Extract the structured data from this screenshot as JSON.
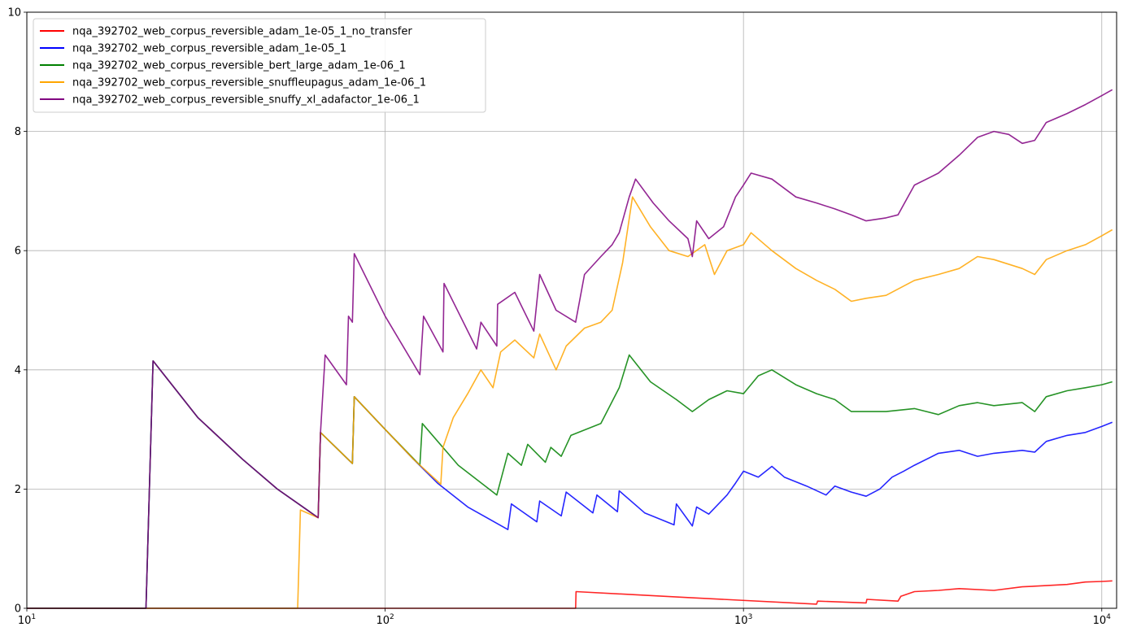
{
  "chart_data": {
    "type": "line",
    "title": "",
    "xlabel": "",
    "ylabel": "",
    "xscale": "log",
    "xlim": [
      10,
      11000
    ],
    "ylim": [
      0,
      10
    ],
    "grid": true,
    "legend_position": "top-left",
    "x_ticks": [
      {
        "value": 10,
        "base": "10",
        "exp": "1"
      },
      {
        "value": 100,
        "base": "10",
        "exp": "2"
      },
      {
        "value": 1000,
        "base": "10",
        "exp": "3"
      },
      {
        "value": 10000,
        "base": "10",
        "exp": "4"
      }
    ],
    "y_ticks": [
      0,
      2,
      4,
      6,
      8,
      10
    ],
    "series": [
      {
        "name": "nqa_392702_web_corpus_reversible_adam_1e-05_1_no_transfer",
        "color": "#ff0000",
        "points": [
          [
            10,
            0
          ],
          [
            340,
            0
          ],
          [
            341,
            0.28
          ],
          [
            700,
            0.18
          ],
          [
            1600,
            0.07
          ],
          [
            1610,
            0.12
          ],
          [
            2200,
            0.09
          ],
          [
            2210,
            0.15
          ],
          [
            2700,
            0.12
          ],
          [
            2750,
            0.2
          ],
          [
            3000,
            0.28
          ],
          [
            3500,
            0.3
          ],
          [
            4000,
            0.33
          ],
          [
            5000,
            0.3
          ],
          [
            6000,
            0.36
          ],
          [
            7000,
            0.38
          ],
          [
            8000,
            0.4
          ],
          [
            9000,
            0.44
          ],
          [
            10000,
            0.45
          ],
          [
            10700,
            0.46
          ]
        ]
      },
      {
        "name": "nqa_392702_web_corpus_reversible_adam_1e-05_1",
        "color": "#0000ff",
        "points": [
          [
            10,
            0
          ],
          [
            21.5,
            0
          ],
          [
            22.5,
            4.15
          ],
          [
            30,
            3.2
          ],
          [
            40,
            2.5
          ],
          [
            50,
            2.0
          ],
          [
            65,
            1.52
          ],
          [
            66,
            2.95
          ],
          [
            81,
            2.43
          ],
          [
            82,
            3.55
          ],
          [
            100,
            3.0
          ],
          [
            120,
            2.5
          ],
          [
            140,
            2.1
          ],
          [
            170,
            1.7
          ],
          [
            220,
            1.32
          ],
          [
            225,
            1.75
          ],
          [
            265,
            1.45
          ],
          [
            270,
            1.8
          ],
          [
            310,
            1.55
          ],
          [
            320,
            1.95
          ],
          [
            380,
            1.6
          ],
          [
            390,
            1.9
          ],
          [
            445,
            1.62
          ],
          [
            450,
            1.97
          ],
          [
            530,
            1.6
          ],
          [
            640,
            1.4
          ],
          [
            650,
            1.75
          ],
          [
            720,
            1.38
          ],
          [
            740,
            1.7
          ],
          [
            800,
            1.58
          ],
          [
            900,
            1.9
          ],
          [
            950,
            2.1
          ],
          [
            1000,
            2.3
          ],
          [
            1100,
            2.2
          ],
          [
            1200,
            2.38
          ],
          [
            1300,
            2.2
          ],
          [
            1500,
            2.05
          ],
          [
            1700,
            1.9
          ],
          [
            1800,
            2.05
          ],
          [
            2000,
            1.95
          ],
          [
            2200,
            1.88
          ],
          [
            2400,
            2.0
          ],
          [
            2600,
            2.2
          ],
          [
            2800,
            2.3
          ],
          [
            3000,
            2.4
          ],
          [
            3500,
            2.6
          ],
          [
            4000,
            2.65
          ],
          [
            4500,
            2.55
          ],
          [
            5000,
            2.6
          ],
          [
            6000,
            2.65
          ],
          [
            6500,
            2.62
          ],
          [
            7000,
            2.8
          ],
          [
            8000,
            2.9
          ],
          [
            9000,
            2.95
          ],
          [
            10000,
            3.05
          ],
          [
            10700,
            3.12
          ]
        ]
      },
      {
        "name": "nqa_392702_web_corpus_reversible_bert_large_adam_1e-06_1",
        "color": "#008000",
        "points": [
          [
            10,
            0
          ],
          [
            21.5,
            0
          ],
          [
            22.5,
            4.15
          ],
          [
            30,
            3.2
          ],
          [
            40,
            2.5
          ],
          [
            50,
            2.0
          ],
          [
            65,
            1.52
          ],
          [
            66,
            2.95
          ],
          [
            81,
            2.43
          ],
          [
            82,
            3.55
          ],
          [
            100,
            3.0
          ],
          [
            125,
            2.4
          ],
          [
            127,
            3.1
          ],
          [
            160,
            2.4
          ],
          [
            205,
            1.9
          ],
          [
            220,
            2.6
          ],
          [
            240,
            2.4
          ],
          [
            250,
            2.75
          ],
          [
            280,
            2.45
          ],
          [
            290,
            2.7
          ],
          [
            310,
            2.55
          ],
          [
            330,
            2.9
          ],
          [
            400,
            3.1
          ],
          [
            450,
            3.7
          ],
          [
            480,
            4.25
          ],
          [
            550,
            3.8
          ],
          [
            650,
            3.5
          ],
          [
            720,
            3.3
          ],
          [
            800,
            3.5
          ],
          [
            900,
            3.65
          ],
          [
            1000,
            3.6
          ],
          [
            1100,
            3.9
          ],
          [
            1200,
            4.0
          ],
          [
            1400,
            3.75
          ],
          [
            1600,
            3.6
          ],
          [
            1800,
            3.5
          ],
          [
            2000,
            3.3
          ],
          [
            2200,
            3.3
          ],
          [
            2500,
            3.3
          ],
          [
            3000,
            3.35
          ],
          [
            3500,
            3.25
          ],
          [
            4000,
            3.4
          ],
          [
            4500,
            3.45
          ],
          [
            5000,
            3.4
          ],
          [
            6000,
            3.45
          ],
          [
            6500,
            3.3
          ],
          [
            7000,
            3.55
          ],
          [
            8000,
            3.65
          ],
          [
            9000,
            3.7
          ],
          [
            10000,
            3.75
          ],
          [
            10700,
            3.8
          ]
        ]
      },
      {
        "name": "nqa_392702_web_corpus_reversible_snuffleupagus_adam_1e-06_1",
        "color": "#ffa500",
        "points": [
          [
            10,
            0
          ],
          [
            57,
            0
          ],
          [
            58,
            1.65
          ],
          [
            65,
            1.52
          ],
          [
            66,
            2.95
          ],
          [
            81,
            2.43
          ],
          [
            82,
            3.55
          ],
          [
            100,
            3.0
          ],
          [
            120,
            2.5
          ],
          [
            143,
            2.08
          ],
          [
            145,
            2.7
          ],
          [
            155,
            3.2
          ],
          [
            170,
            3.6
          ],
          [
            185,
            4.0
          ],
          [
            200,
            3.7
          ],
          [
            210,
            4.3
          ],
          [
            230,
            4.5
          ],
          [
            260,
            4.2
          ],
          [
            270,
            4.6
          ],
          [
            300,
            4.0
          ],
          [
            320,
            4.4
          ],
          [
            360,
            4.7
          ],
          [
            400,
            4.8
          ],
          [
            430,
            5.0
          ],
          [
            460,
            5.8
          ],
          [
            490,
            6.9
          ],
          [
            550,
            6.4
          ],
          [
            620,
            6.0
          ],
          [
            700,
            5.9
          ],
          [
            780,
            6.1
          ],
          [
            830,
            5.6
          ],
          [
            900,
            6.0
          ],
          [
            1000,
            6.1
          ],
          [
            1050,
            6.3
          ],
          [
            1200,
            6.0
          ],
          [
            1400,
            5.7
          ],
          [
            1600,
            5.5
          ],
          [
            1800,
            5.35
          ],
          [
            2000,
            5.15
          ],
          [
            2200,
            5.2
          ],
          [
            2500,
            5.25
          ],
          [
            3000,
            5.5
          ],
          [
            3500,
            5.6
          ],
          [
            4000,
            5.7
          ],
          [
            4500,
            5.9
          ],
          [
            5000,
            5.85
          ],
          [
            6000,
            5.7
          ],
          [
            6500,
            5.6
          ],
          [
            7000,
            5.85
          ],
          [
            8000,
            6.0
          ],
          [
            9000,
            6.1
          ],
          [
            10000,
            6.25
          ],
          [
            10700,
            6.35
          ]
        ]
      },
      {
        "name": "nqa_392702_web_corpus_reversible_snuffy_xl_adafactor_1e-06_1",
        "color": "#800080",
        "points": [
          [
            10,
            0
          ],
          [
            21.5,
            0
          ],
          [
            22.5,
            4.15
          ],
          [
            30,
            3.2
          ],
          [
            40,
            2.5
          ],
          [
            50,
            2.0
          ],
          [
            65,
            1.52
          ],
          [
            66,
            2.95
          ],
          [
            68,
            4.25
          ],
          [
            78,
            3.75
          ],
          [
            79,
            4.9
          ],
          [
            81,
            4.8
          ],
          [
            82,
            5.95
          ],
          [
            100,
            4.9
          ],
          [
            120,
            4.1
          ],
          [
            125,
            3.92
          ],
          [
            128,
            4.9
          ],
          [
            145,
            4.3
          ],
          [
            146,
            5.45
          ],
          [
            180,
            4.35
          ],
          [
            185,
            4.8
          ],
          [
            205,
            4.4
          ],
          [
            206,
            5.1
          ],
          [
            230,
            5.3
          ],
          [
            260,
            4.65
          ],
          [
            270,
            5.6
          ],
          [
            300,
            5.0
          ],
          [
            340,
            4.8
          ],
          [
            360,
            5.6
          ],
          [
            400,
            5.9
          ],
          [
            430,
            6.1
          ],
          [
            450,
            6.3
          ],
          [
            480,
            6.9
          ],
          [
            500,
            7.2
          ],
          [
            560,
            6.8
          ],
          [
            620,
            6.5
          ],
          [
            700,
            6.2
          ],
          [
            720,
            5.9
          ],
          [
            740,
            6.5
          ],
          [
            800,
            6.2
          ],
          [
            880,
            6.4
          ],
          [
            950,
            6.9
          ],
          [
            1000,
            7.1
          ],
          [
            1050,
            7.3
          ],
          [
            1200,
            7.2
          ],
          [
            1400,
            6.9
          ],
          [
            1600,
            6.8
          ],
          [
            1800,
            6.7
          ],
          [
            2000,
            6.6
          ],
          [
            2200,
            6.5
          ],
          [
            2500,
            6.55
          ],
          [
            2700,
            6.6
          ],
          [
            3000,
            7.1
          ],
          [
            3500,
            7.3
          ],
          [
            4000,
            7.6
          ],
          [
            4500,
            7.9
          ],
          [
            5000,
            8.0
          ],
          [
            5500,
            7.95
          ],
          [
            6000,
            7.8
          ],
          [
            6500,
            7.85
          ],
          [
            7000,
            8.15
          ],
          [
            8000,
            8.3
          ],
          [
            9000,
            8.45
          ],
          [
            10000,
            8.6
          ],
          [
            10700,
            8.7
          ]
        ]
      }
    ]
  }
}
